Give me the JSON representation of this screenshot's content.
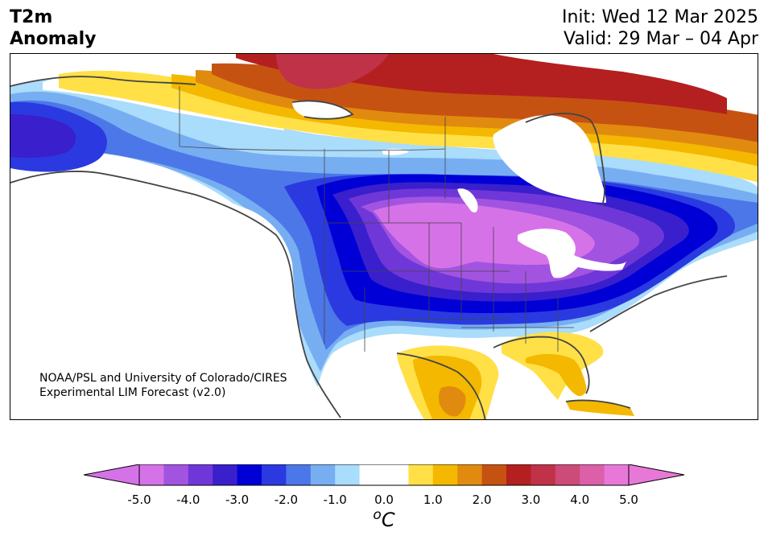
{
  "title": {
    "variable_line1": "T2m",
    "variable_line2": "Anomaly",
    "init": "Init: Wed 12 Mar 2025",
    "valid": "Valid: 29 Mar – 04 Apr"
  },
  "credit": {
    "line1": "NOAA/PSL and University of Colorado/CIRES",
    "line2": "Experimental LIM Forecast (v2.0)"
  },
  "colorbar": {
    "units_base": "C",
    "units_sup": "o",
    "ticks": [
      "-5.0",
      "-4.0",
      "-3.0",
      "-2.0",
      "-1.0",
      "0.0",
      "1.0",
      "2.0",
      "3.0",
      "4.0",
      "5.0"
    ],
    "colors": [
      "#d672e8",
      "#a254e0",
      "#7037d8",
      "#3a1fcc",
      "#0000d6",
      "#2a3ae0",
      "#4c77e8",
      "#77aef2",
      "#aadcfb",
      "#ffffff",
      "#ffffff",
      "#ffe047",
      "#f4b800",
      "#e08b0f",
      "#c65212",
      "#b3201f",
      "#c03248",
      "#cc4b78",
      "#dc60a8",
      "#e878d8"
    ],
    "under_color": "#d672e8",
    "over_color": "#e878d8"
  },
  "map": {
    "region": "North America",
    "anomaly_regions": [
      {
        "name": "northern-plains-cold-core",
        "value": -5.0
      },
      {
        "name": "northeast-canada-warm",
        "value": 3.0
      },
      {
        "name": "alaska-cold",
        "value": -2.5
      },
      {
        "name": "texas-mexico-warm",
        "value": 2.0
      },
      {
        "name": "florida-warm",
        "value": 1.5
      }
    ]
  }
}
